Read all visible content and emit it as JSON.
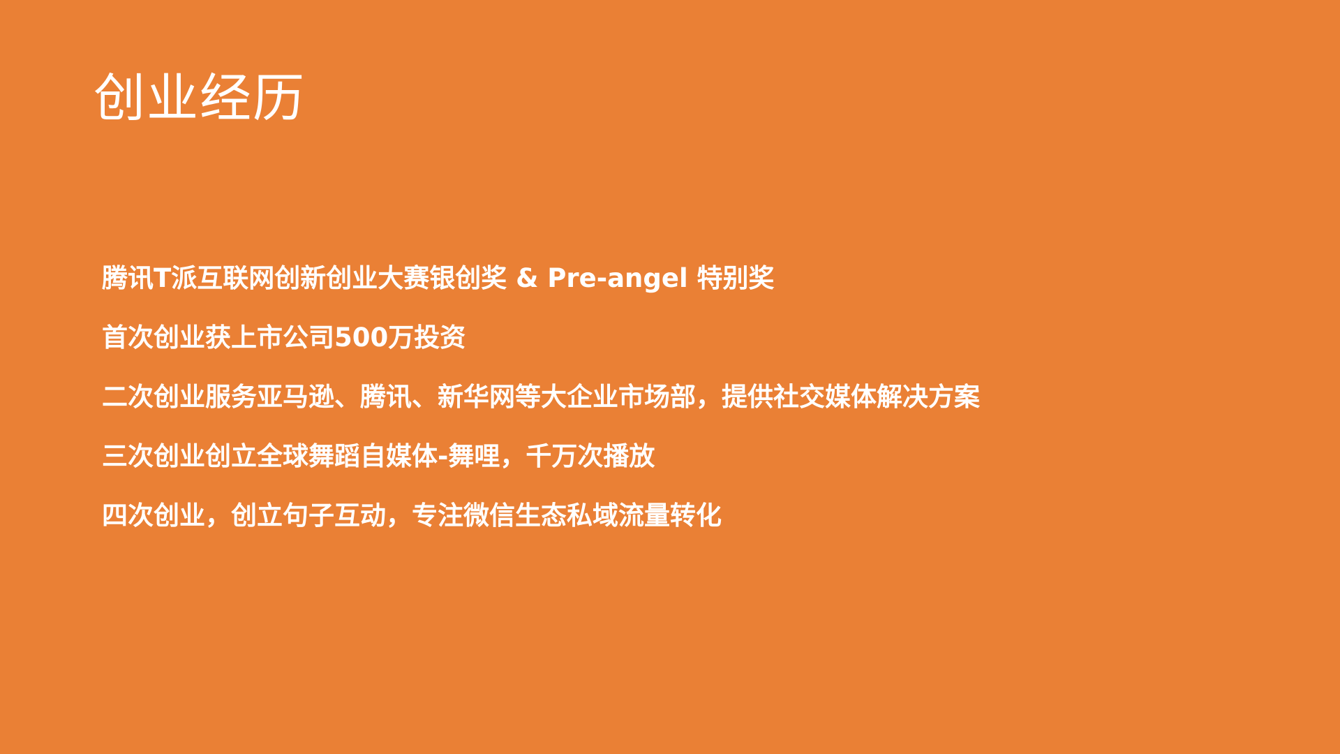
{
  "slide": {
    "title": "创业经历",
    "items": [
      "腾讯T派互联网创新创业大赛银创奖 & Pre-angel 特别奖",
      "首次创业获上市公司500万投资",
      "二次创业服务亚马逊、腾讯、新华网等大企业市场部，提供社交媒体解决方案",
      "三次创业创立全球舞蹈自媒体-舞哩，千万次播放",
      "四次创业，创立句子互动，专注微信生态私域流量转化"
    ],
    "colors": {
      "background": "#EA8035",
      "text": "#FFFFFF"
    }
  }
}
